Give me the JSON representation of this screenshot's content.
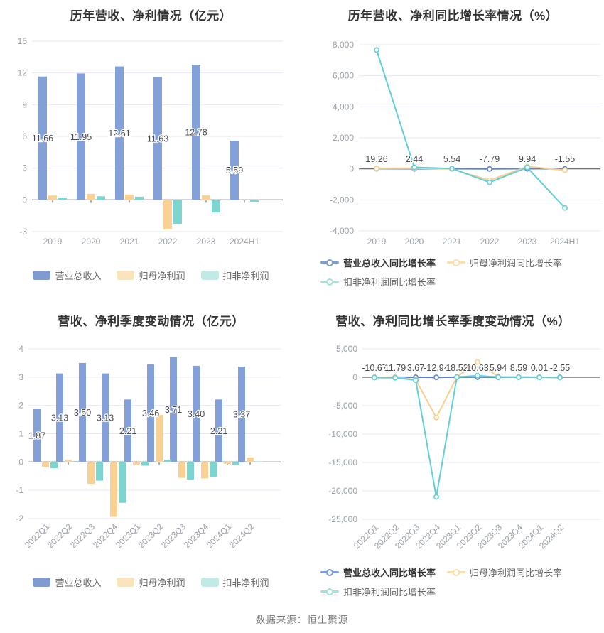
{
  "page": {
    "background": "#ffffff",
    "source_note": "数据来源：恒生聚源"
  },
  "colors": {
    "bar_blue": "#84A0D8",
    "bar_orange": "#FAD195",
    "bar_teal": "#7CD5CE",
    "line_blue": "#5F82C8",
    "line_orange": "#F8CE8D",
    "line_teal": "#63CED6",
    "legend_blue": "#7E9BD3",
    "legend_orange": "#FBE3BC",
    "legend_teal": "#BFEAE6",
    "legend_orange_line": "#FBDFAE",
    "legend_teal_line": "#9FE3E0",
    "grid_line": "#E6EAF6",
    "axis_line": "#5B5F66",
    "value_label_text": "#4A4A4A",
    "tick_text": "#9AA0A8"
  },
  "chart_data": [
    {
      "id": "annual-amounts",
      "type": "bar",
      "title": "历年营收、净利情况（亿元）",
      "unit": "亿元",
      "grid": true,
      "legend_position": "bottom",
      "categories": [
        "2019",
        "2020",
        "2021",
        "2022",
        "2023",
        "2024H1"
      ],
      "ylim": [
        -3,
        15
      ],
      "y_tick_values": [
        15,
        12,
        9,
        6,
        3,
        0,
        -3
      ],
      "y_tick_labels": [
        "15",
        "12",
        "9",
        "6",
        "3",
        "0",
        "-3"
      ],
      "series": [
        {
          "name": "营业总收入",
          "color_key": "bar_blue",
          "legend_color_key": "legend_blue",
          "values": [
            11.66,
            11.95,
            12.61,
            11.63,
            12.78,
            5.59
          ]
        },
        {
          "name": "归母净利润",
          "color_key": "bar_orange",
          "legend_color_key": "legend_orange",
          "values": [
            0.41,
            0.57,
            0.5,
            -2.8,
            0.44,
            -0.02
          ]
        },
        {
          "name": "扣非净利润",
          "color_key": "bar_teal",
          "legend_color_key": "legend_teal",
          "values": [
            0.21,
            0.34,
            0.3,
            -2.26,
            -1.19,
            -0.2
          ]
        }
      ],
      "value_labels": [
        "11.66",
        "11.95",
        "12.61",
        "11.63",
        "12.78",
        "5.59"
      ]
    },
    {
      "id": "annual-growth",
      "type": "line",
      "title": "历年营收、净利同比增长率情况（%）",
      "unit": "%",
      "grid": true,
      "legend_position": "bottom",
      "categories": [
        "2019",
        "2020",
        "2021",
        "2022",
        "2023",
        "2024H1"
      ],
      "ylim": [
        -4000,
        8000
      ],
      "y_tick_values": [
        8000,
        6000,
        4000,
        2000,
        0,
        -2000,
        -4000
      ],
      "y_tick_labels": [
        "8,000",
        "6,000",
        "4,000",
        "2,000",
        "0",
        "-2,000",
        "-4,000"
      ],
      "series": [
        {
          "name": "营业总收入同比增长率",
          "color_key": "line_blue",
          "legend_color_key": "legend_blue",
          "values": [
            19.26,
            2.44,
            5.54,
            -7.79,
            9.94,
            -1.55
          ]
        },
        {
          "name": "归母净利润同比增长率",
          "color_key": "line_orange",
          "legend_color_key": "legend_orange_line",
          "values": [
            30,
            40,
            -10,
            -740,
            150,
            -90
          ]
        },
        {
          "name": "扣非净利润同比增长率",
          "color_key": "line_teal",
          "legend_color_key": "legend_teal_line",
          "values": [
            7660,
            100,
            20,
            -870,
            90,
            -2520
          ]
        }
      ],
      "value_labels": [
        "19.26",
        "2.44",
        "5.54",
        "-7.79",
        "9.94",
        "-1.55"
      ]
    },
    {
      "id": "quarterly-amounts",
      "type": "bar",
      "title": "营收、净利季度变动情况（亿元）",
      "unit": "亿元",
      "grid": true,
      "legend_position": "bottom",
      "categories": [
        "2022Q1",
        "2022Q2",
        "2022Q3",
        "2022Q4",
        "2023Q1",
        "2023Q2",
        "2023Q3",
        "2023Q4",
        "2024Q1",
        "2024Q2"
      ],
      "ylim": [
        -2,
        4
      ],
      "y_tick_values": [
        4,
        3,
        2,
        1,
        0,
        -1,
        -2
      ],
      "y_tick_labels": [
        "4",
        "3",
        "2",
        "1",
        "0",
        "-1",
        "-2"
      ],
      "series": [
        {
          "name": "营业总收入",
          "color_key": "bar_blue",
          "legend_color_key": "legend_blue",
          "values": [
            1.87,
            3.13,
            3.5,
            3.13,
            2.21,
            3.46,
            3.71,
            3.4,
            2.21,
            3.37
          ]
        },
        {
          "name": "归母净利润",
          "color_key": "bar_orange",
          "legend_color_key": "legend_orange",
          "values": [
            -0.17,
            0.08,
            -0.77,
            -1.94,
            -0.1,
            1.67,
            -0.56,
            -0.58,
            -0.07,
            0.16
          ]
        },
        {
          "name": "扣非净利润",
          "color_key": "bar_teal",
          "legend_color_key": "legend_teal",
          "values": [
            -0.22,
            0.03,
            -0.66,
            -1.44,
            -0.13,
            0.08,
            -0.62,
            -0.53,
            -0.1,
            0.02
          ]
        }
      ],
      "value_labels": [
        "1.87",
        "3.13",
        "3.50",
        "3.13",
        "2.21",
        "3.46",
        "3.71",
        "3.40",
        "2.21",
        "3.37"
      ]
    },
    {
      "id": "quarterly-growth",
      "type": "line",
      "title": "营收、净利同比增长率季度变动情况（%）",
      "unit": "%",
      "grid": true,
      "legend_position": "bottom",
      "categories": [
        "2022Q1",
        "2022Q2",
        "2022Q3",
        "2022Q4",
        "2023Q1",
        "2023Q2",
        "2023Q3",
        "2023Q4",
        "2024Q1",
        "2024Q2"
      ],
      "ylim": [
        -25000,
        5000
      ],
      "y_tick_values": [
        5000,
        0,
        -5000,
        -10000,
        -15000,
        -20000,
        -25000
      ],
      "y_tick_labels": [
        "5,000",
        "0",
        "-5,000",
        "-10,000",
        "-15,000",
        "-20,000",
        "-25,000"
      ],
      "series": [
        {
          "name": "营业总收入同比增长率",
          "color_key": "line_blue",
          "legend_color_key": "legend_blue",
          "values": [
            -10.67,
            11.79,
            3.67,
            -12.94,
            18.52,
            10.63,
            5.94,
            8.59,
            0.01,
            -2.55
          ]
        },
        {
          "name": "归母净利润同比增长率",
          "color_key": "line_orange",
          "legend_color_key": "legend_orange_line",
          "values": [
            -30,
            25,
            -430,
            -7100,
            60,
            2700,
            90,
            40,
            25,
            -80
          ]
        },
        {
          "name": "扣非净利润同比增长率",
          "color_key": "line_teal",
          "legend_color_key": "legend_teal_line",
          "values": [
            -60,
            -90,
            -500,
            -21050,
            40,
            280,
            30,
            20,
            -15,
            -50
          ]
        }
      ],
      "value_labels": [
        "-10.67",
        "11.79",
        "3.67",
        "-12.94",
        "18.52",
        "10.63",
        "5.94",
        "8.59",
        "0.01",
        "-2.55"
      ]
    }
  ]
}
